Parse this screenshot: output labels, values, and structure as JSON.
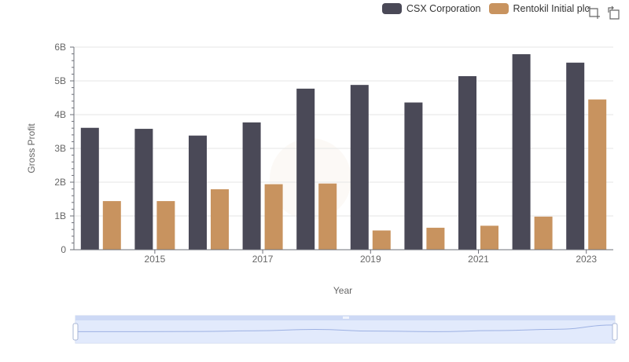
{
  "legend": [
    {
      "label": "CSX Corporation",
      "color": "#4a4957"
    },
    {
      "label": "Rentokil Initial plc",
      "color": "#c8935f"
    }
  ],
  "toolbox": {
    "icons": [
      "zoom-icon",
      "zoom-reset-icon"
    ]
  },
  "chart_data": {
    "type": "bar",
    "xlabel": "Year",
    "ylabel": "Gross Profit",
    "categories": [
      "2014",
      "2015",
      "2016",
      "2017",
      "2018",
      "2019",
      "2020",
      "2021",
      "2022",
      "2023"
    ],
    "x_tick_labels": [
      "2015",
      "2017",
      "2019",
      "2021",
      "2023"
    ],
    "y_tick_labels": [
      "0",
      "1B",
      "2B",
      "3B",
      "4B",
      "5B",
      "6B"
    ],
    "ylim": [
      0,
      6000000000
    ],
    "grid": true,
    "legend_position": "top-right",
    "series": [
      {
        "name": "CSX Corporation",
        "color": "#4a4957",
        "values": [
          3610000000,
          3580000000,
          3380000000,
          3770000000,
          4770000000,
          4880000000,
          4360000000,
          5140000000,
          5790000000,
          5540000000
        ]
      },
      {
        "name": "Rentokil Initial plc",
        "color": "#c8935f",
        "values": [
          1440000000,
          1440000000,
          1790000000,
          1940000000,
          1960000000,
          570000000,
          650000000,
          710000000,
          980000000,
          4450000000
        ]
      }
    ]
  }
}
